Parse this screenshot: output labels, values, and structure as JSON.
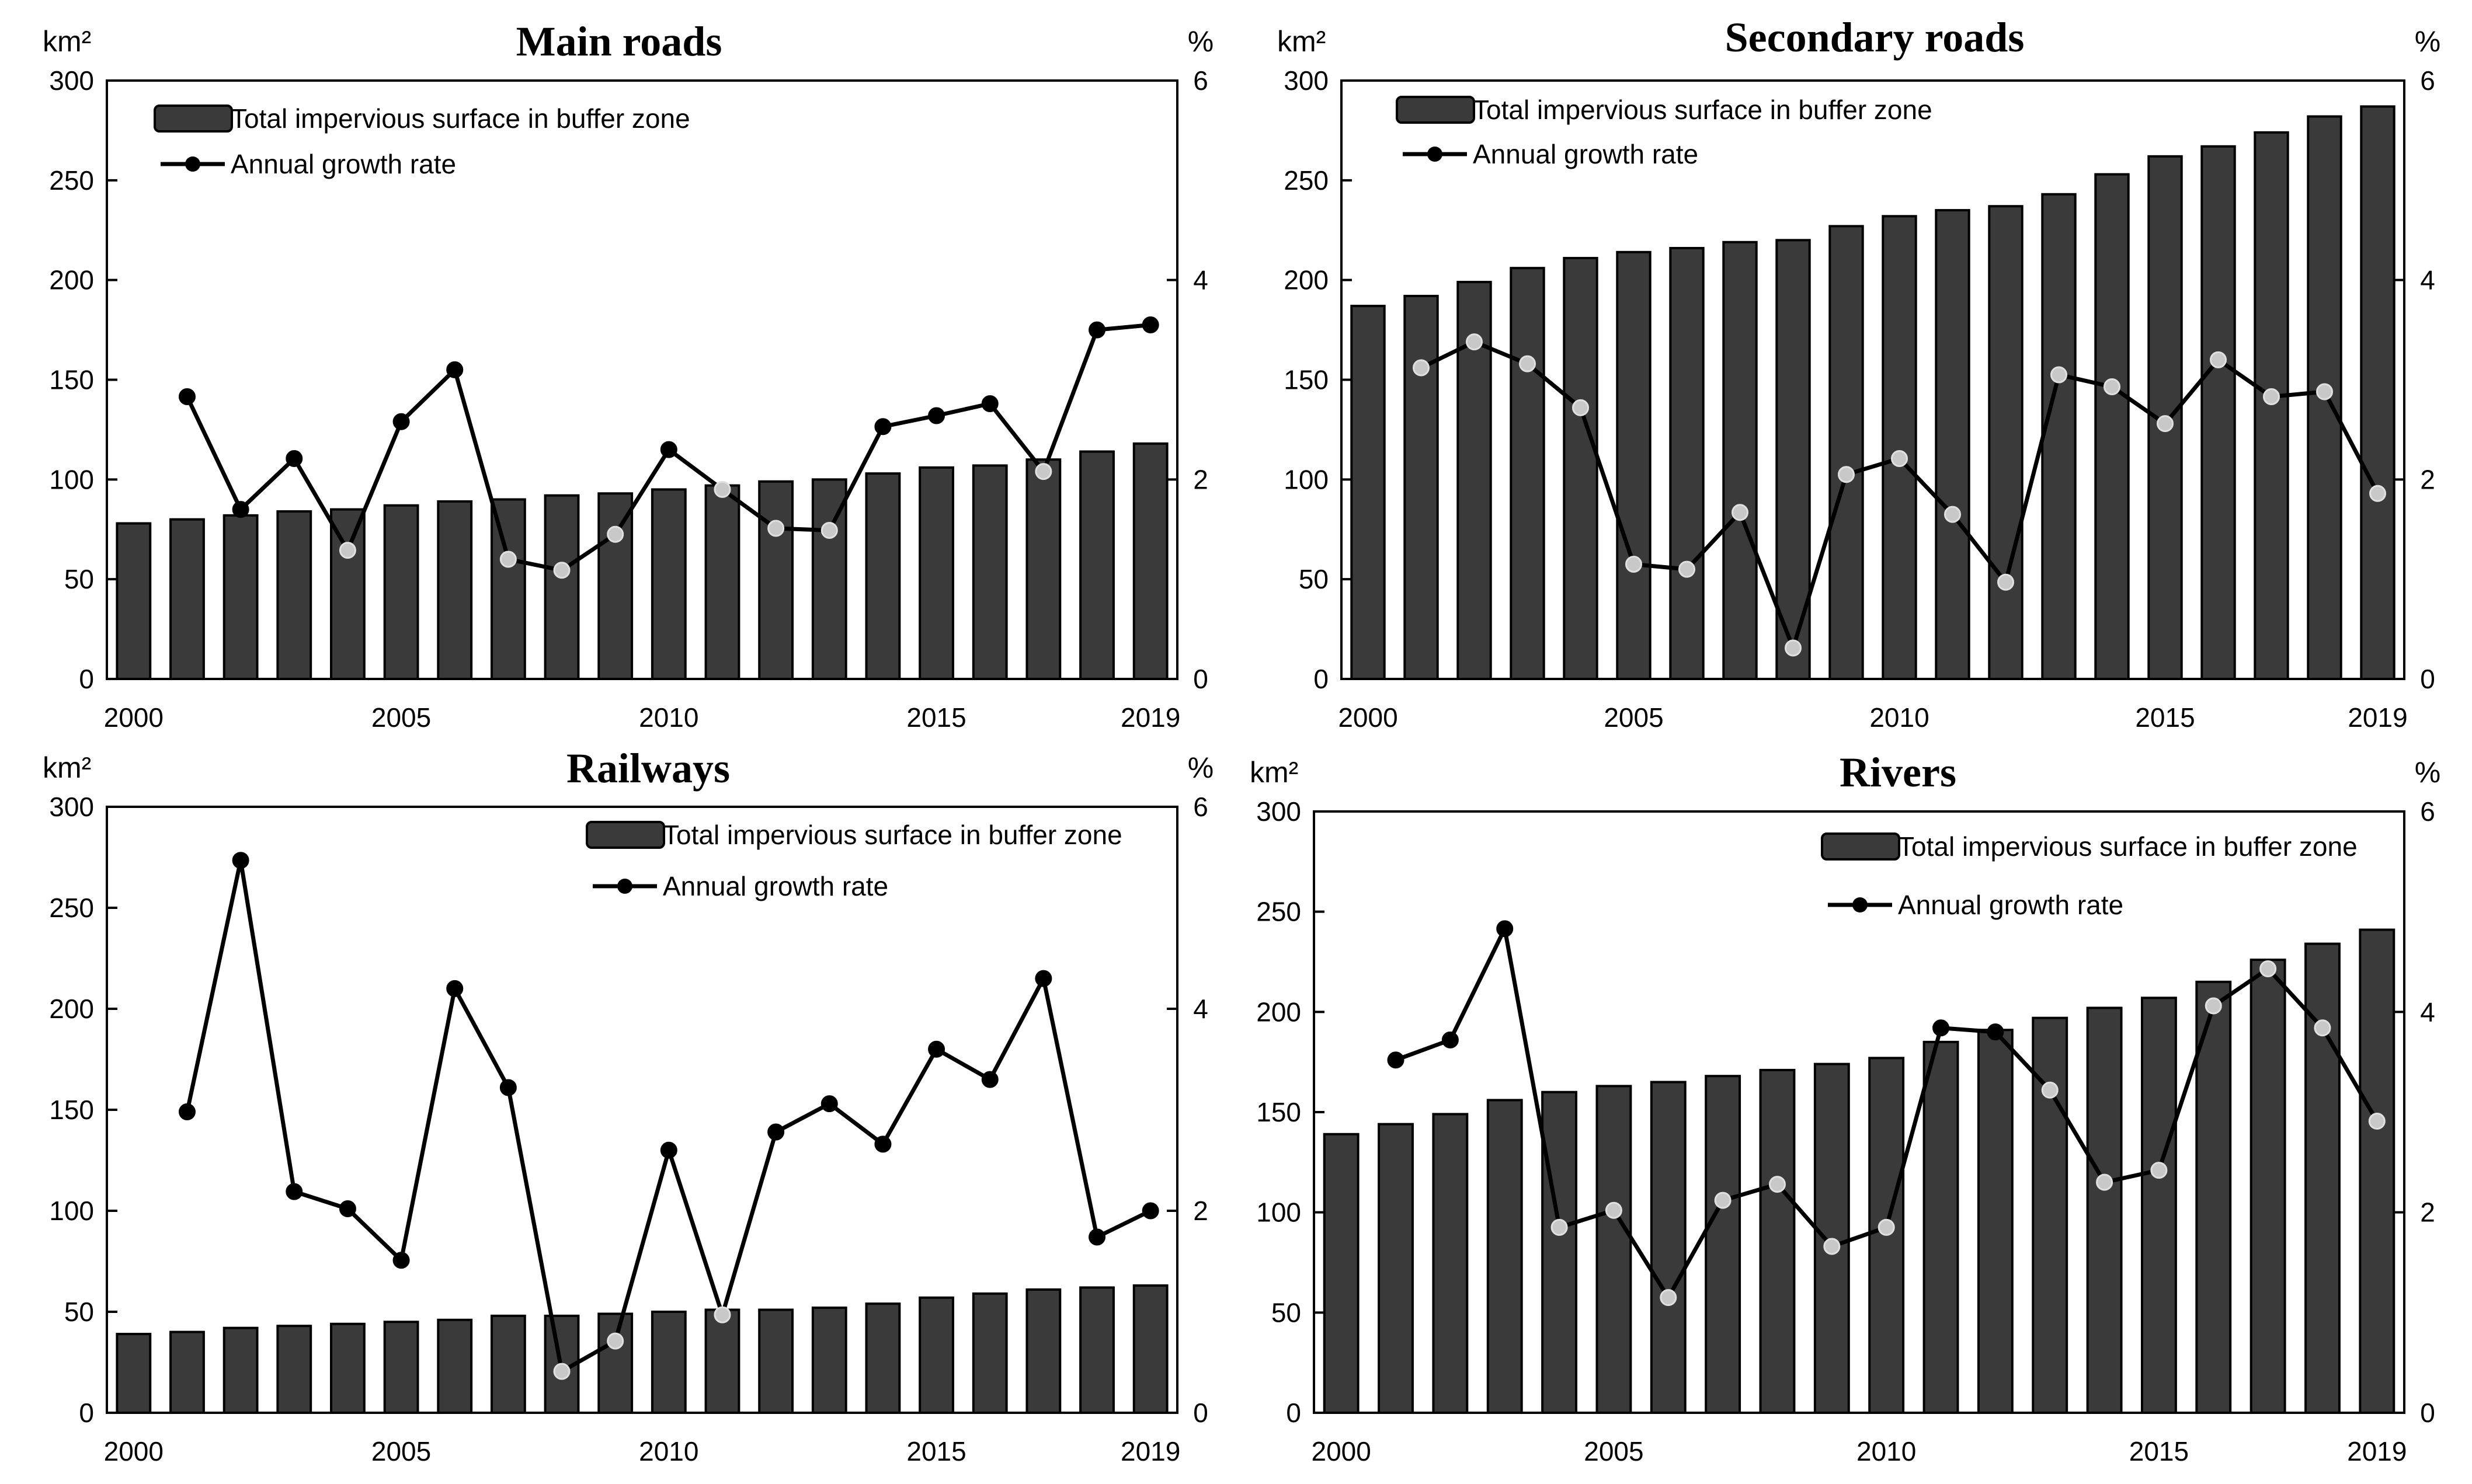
{
  "chart_data": [
    {
      "type": "bar",
      "title": "Main roads",
      "ylabel_left": "km²",
      "ylabel_right": "%",
      "ylim_left": [
        0,
        300
      ],
      "ylim_right": [
        0,
        6
      ],
      "yticks_left": [
        "0",
        "50",
        "100",
        "150",
        "200",
        "250",
        "300"
      ],
      "yticks_right": [
        "0",
        "2",
        "4",
        "6"
      ],
      "x": [
        2000,
        2001,
        2002,
        2003,
        2004,
        2005,
        2006,
        2007,
        2008,
        2009,
        2010,
        2011,
        2012,
        2013,
        2014,
        2015,
        2016,
        2017,
        2018,
        2019
      ],
      "xtick_labels": [
        "2000",
        "2005",
        "2010",
        "2015",
        "2019"
      ],
      "legend_position": "top-left",
      "series": [
        {
          "name": "Total impervious surface in buffer zone",
          "kind": "bar",
          "axis": "left",
          "values": [
            78,
            80,
            82,
            84,
            85,
            87,
            89,
            90,
            92,
            93,
            95,
            97,
            99,
            100,
            103,
            106,
            107,
            110,
            114,
            118
          ]
        },
        {
          "name": "Annual growth rate",
          "kind": "line",
          "axis": "right",
          "values": [
            null,
            2.83,
            1.7,
            2.21,
            1.29,
            2.58,
            3.1,
            1.2,
            1.09,
            1.45,
            2.3,
            1.9,
            1.51,
            1.49,
            2.53,
            2.64,
            2.76,
            2.08,
            3.5,
            3.55
          ]
        }
      ]
    },
    {
      "type": "bar",
      "title": "Secondary roads",
      "ylabel_left": "km²",
      "ylabel_right": "%",
      "ylim_left": [
        0,
        300
      ],
      "ylim_right": [
        0,
        6
      ],
      "yticks_left": [
        "0",
        "50",
        "100",
        "150",
        "200",
        "250",
        "300"
      ],
      "yticks_right": [
        "0",
        "2",
        "4",
        "6"
      ],
      "x": [
        2000,
        2001,
        2002,
        2003,
        2004,
        2005,
        2006,
        2007,
        2008,
        2009,
        2010,
        2011,
        2012,
        2013,
        2014,
        2015,
        2016,
        2017,
        2018,
        2019
      ],
      "xtick_labels": [
        "2000",
        "2005",
        "2010",
        "2015",
        "2019"
      ],
      "legend_position": "top-left",
      "series": [
        {
          "name": "Total impervious surface in buffer zone",
          "kind": "bar",
          "axis": "left",
          "values": [
            187,
            192,
            199,
            206,
            211,
            214,
            216,
            219,
            220,
            227,
            232,
            235,
            237,
            243,
            253,
            262,
            267,
            274,
            282,
            287
          ]
        },
        {
          "name": "Annual growth rate",
          "kind": "line",
          "axis": "right",
          "values": [
            null,
            3.12,
            3.38,
            3.16,
            2.72,
            1.15,
            1.1,
            1.67,
            0.31,
            2.05,
            2.21,
            1.65,
            0.97,
            3.05,
            2.93,
            2.56,
            3.2,
            2.83,
            2.88,
            1.86
          ]
        }
      ]
    },
    {
      "type": "bar",
      "title": "Railways",
      "ylabel_left": "km²",
      "ylabel_right": "%",
      "ylim_left": [
        0,
        300
      ],
      "ylim_right": [
        0,
        6
      ],
      "yticks_left": [
        "0",
        "50",
        "100",
        "150",
        "200",
        "250",
        "300"
      ],
      "yticks_right": [
        "0",
        "2",
        "4",
        "6"
      ],
      "x": [
        2000,
        2001,
        2002,
        2003,
        2004,
        2005,
        2006,
        2007,
        2008,
        2009,
        2010,
        2011,
        2012,
        2013,
        2014,
        2015,
        2016,
        2017,
        2018,
        2019
      ],
      "xtick_labels": [
        "2000",
        "2005",
        "2010",
        "2015",
        "2019"
      ],
      "legend_position": "top-right",
      "series": [
        {
          "name": "Total impervious surface in buffer zone",
          "kind": "bar",
          "axis": "left",
          "values": [
            39,
            40,
            42,
            43,
            44,
            45,
            46,
            48,
            48,
            49,
            50,
            51,
            51,
            52,
            54,
            57,
            59,
            61,
            62,
            63
          ]
        },
        {
          "name": "Annual growth rate",
          "kind": "line",
          "axis": "right",
          "values": [
            null,
            2.98,
            5.47,
            2.19,
            2.02,
            1.51,
            4.2,
            3.22,
            0.41,
            0.71,
            2.6,
            0.97,
            2.78,
            3.06,
            2.66,
            3.6,
            3.3,
            4.3,
            1.74,
            2.0
          ]
        }
      ]
    },
    {
      "type": "bar",
      "title": "Rivers",
      "ylabel_left": "km²",
      "ylabel_right": "%",
      "ylim_left": [
        0,
        300
      ],
      "ylim_right": [
        0,
        6
      ],
      "yticks_left": [
        "0",
        "50",
        "100",
        "150",
        "200",
        "250",
        "300"
      ],
      "yticks_right": [
        "0",
        "2",
        "4",
        "6"
      ],
      "x": [
        2000,
        2001,
        2002,
        2003,
        2004,
        2005,
        2006,
        2007,
        2008,
        2009,
        2010,
        2011,
        2012,
        2013,
        2014,
        2015,
        2016,
        2017,
        2018,
        2019
      ],
      "xtick_labels": [
        "2000",
        "2005",
        "2010",
        "2015",
        "2019"
      ],
      "legend_position": "top-right",
      "series": [
        {
          "name": "Total impervious surface in buffer zone",
          "kind": "bar",
          "axis": "left",
          "values": [
            139,
            144,
            149,
            156,
            160,
            163,
            165,
            168,
            171,
            174,
            177,
            185,
            191,
            197,
            202,
            207,
            215,
            226,
            234,
            241
          ]
        },
        {
          "name": "Annual growth rate",
          "kind": "line",
          "axis": "right",
          "values": [
            null,
            3.52,
            3.72,
            4.83,
            1.85,
            2.02,
            1.15,
            2.12,
            2.28,
            1.66,
            1.85,
            3.84,
            3.8,
            3.22,
            2.3,
            2.42,
            4.06,
            4.43,
            3.84,
            2.91
          ]
        }
      ]
    }
  ]
}
